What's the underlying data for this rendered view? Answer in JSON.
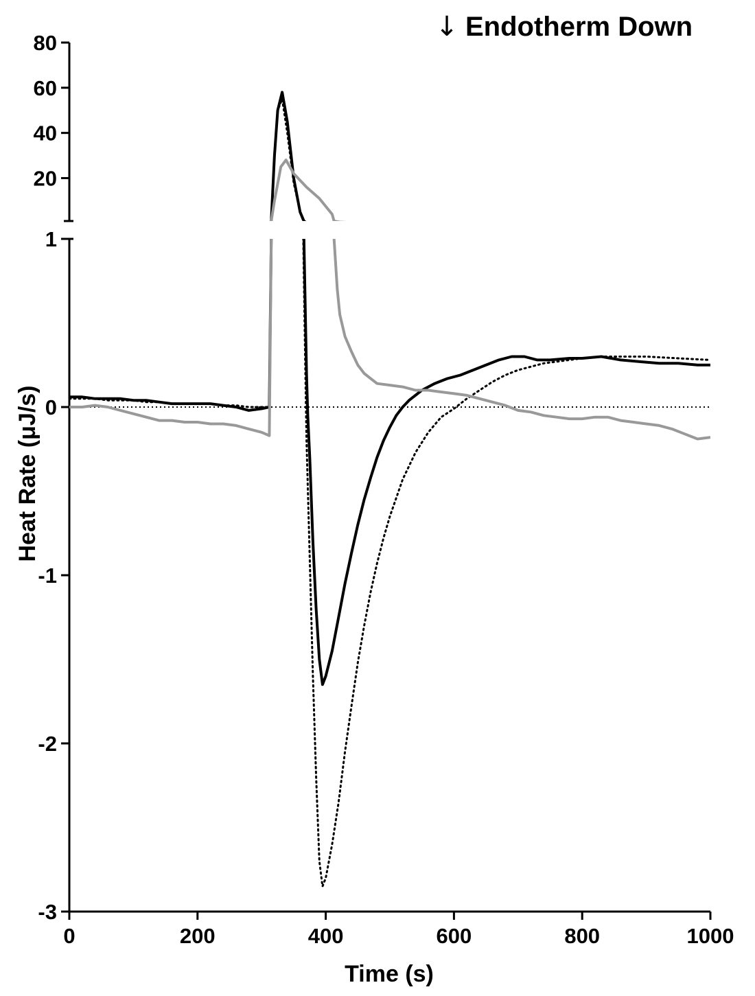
{
  "chart_data": {
    "type": "line",
    "annotation": "Endotherm Down",
    "annotation_icon": "down-arrow-icon",
    "xlabel": "Time (s)",
    "ylabel": "Heat Rate (μJ/s)",
    "xlim": [
      0,
      1000
    ],
    "x_ticks": [
      0,
      200,
      400,
      600,
      800,
      1000
    ],
    "x_tick_labels": [
      "0",
      "200",
      "400",
      "600",
      "800",
      "1000"
    ],
    "y_axis_break": true,
    "lower_segment": {
      "ylim": [
        -3,
        1
      ],
      "ticks": [
        -3,
        -2,
        -1,
        0,
        1
      ],
      "tick_labels": [
        "-3",
        "-2",
        "-1",
        "0",
        "1"
      ]
    },
    "upper_segment": {
      "ylim": [
        1,
        80
      ],
      "ticks": [
        20,
        40,
        60,
        80
      ],
      "tick_labels": [
        "20",
        "40",
        "60",
        "80"
      ]
    },
    "reference_line": {
      "y": 0,
      "style": "dotted",
      "color": "#000000"
    },
    "legend": "none",
    "grid": false,
    "series": [
      {
        "color": "#000000",
        "style": "solid",
        "points": [
          [
            0,
            0.06
          ],
          [
            20,
            0.06
          ],
          [
            40,
            0.05
          ],
          [
            60,
            0.05
          ],
          [
            80,
            0.05
          ],
          [
            100,
            0.04
          ],
          [
            120,
            0.04
          ],
          [
            140,
            0.03
          ],
          [
            160,
            0.02
          ],
          [
            180,
            0.02
          ],
          [
            200,
            0.02
          ],
          [
            220,
            0.02
          ],
          [
            240,
            0.01
          ],
          [
            260,
            0
          ],
          [
            280,
            -0.02
          ],
          [
            300,
            -0.01
          ],
          [
            312,
            0
          ],
          [
            315,
            1
          ],
          [
            320,
            30
          ],
          [
            325,
            50
          ],
          [
            332,
            58
          ],
          [
            340,
            45
          ],
          [
            350,
            20
          ],
          [
            360,
            5
          ],
          [
            366,
            1
          ],
          [
            368,
            0.6
          ],
          [
            370,
            0.2
          ],
          [
            372,
            -0.05
          ],
          [
            375,
            -0.3
          ],
          [
            380,
            -0.8
          ],
          [
            385,
            -1.2
          ],
          [
            390,
            -1.5
          ],
          [
            395,
            -1.65
          ],
          [
            400,
            -1.6
          ],
          [
            410,
            -1.45
          ],
          [
            420,
            -1.25
          ],
          [
            430,
            -1.05
          ],
          [
            440,
            -0.87
          ],
          [
            450,
            -0.7
          ],
          [
            460,
            -0.55
          ],
          [
            470,
            -0.42
          ],
          [
            480,
            -0.3
          ],
          [
            490,
            -0.2
          ],
          [
            500,
            -0.12
          ],
          [
            510,
            -0.05
          ],
          [
            520,
            0
          ],
          [
            530,
            0.04
          ],
          [
            550,
            0.1
          ],
          [
            570,
            0.14
          ],
          [
            590,
            0.17
          ],
          [
            610,
            0.19
          ],
          [
            630,
            0.22
          ],
          [
            650,
            0.25
          ],
          [
            670,
            0.28
          ],
          [
            690,
            0.3
          ],
          [
            710,
            0.3
          ],
          [
            730,
            0.28
          ],
          [
            750,
            0.28
          ],
          [
            780,
            0.29
          ],
          [
            800,
            0.29
          ],
          [
            830,
            0.3
          ],
          [
            860,
            0.28
          ],
          [
            890,
            0.27
          ],
          [
            920,
            0.26
          ],
          [
            950,
            0.26
          ],
          [
            980,
            0.25
          ],
          [
            1000,
            0.25
          ]
        ]
      },
      {
        "color": "#000000",
        "style": "dotted",
        "points": [
          [
            0,
            0.05
          ],
          [
            20,
            0.05
          ],
          [
            40,
            0.05
          ],
          [
            60,
            0.04
          ],
          [
            80,
            0.04
          ],
          [
            100,
            0.04
          ],
          [
            120,
            0.03
          ],
          [
            140,
            0.03
          ],
          [
            160,
            0.02
          ],
          [
            180,
            0.02
          ],
          [
            200,
            0.02
          ],
          [
            220,
            0.02
          ],
          [
            240,
            0.01
          ],
          [
            260,
            0.01
          ],
          [
            280,
            0
          ],
          [
            300,
            0
          ],
          [
            312,
            0
          ],
          [
            315,
            1
          ],
          [
            320,
            30
          ],
          [
            325,
            50
          ],
          [
            332,
            55
          ],
          [
            340,
            40
          ],
          [
            350,
            18
          ],
          [
            360,
            5
          ],
          [
            365,
            1
          ],
          [
            367,
            0.5
          ],
          [
            370,
            -0.2
          ],
          [
            375,
            -0.9
          ],
          [
            380,
            -1.6
          ],
          [
            385,
            -2.2
          ],
          [
            390,
            -2.7
          ],
          [
            395,
            -2.85
          ],
          [
            400,
            -2.8
          ],
          [
            410,
            -2.6
          ],
          [
            420,
            -2.35
          ],
          [
            430,
            -2.05
          ],
          [
            440,
            -1.78
          ],
          [
            450,
            -1.52
          ],
          [
            460,
            -1.3
          ],
          [
            470,
            -1.1
          ],
          [
            480,
            -0.93
          ],
          [
            490,
            -0.78
          ],
          [
            500,
            -0.65
          ],
          [
            520,
            -0.43
          ],
          [
            540,
            -0.27
          ],
          [
            560,
            -0.15
          ],
          [
            580,
            -0.06
          ],
          [
            600,
            -0.01
          ],
          [
            620,
            0.05
          ],
          [
            640,
            0.1
          ],
          [
            660,
            0.15
          ],
          [
            680,
            0.19
          ],
          [
            700,
            0.22
          ],
          [
            720,
            0.24
          ],
          [
            740,
            0.26
          ],
          [
            760,
            0.27
          ],
          [
            780,
            0.28
          ],
          [
            800,
            0.29
          ],
          [
            830,
            0.3
          ],
          [
            860,
            0.3
          ],
          [
            900,
            0.3
          ],
          [
            950,
            0.29
          ],
          [
            1000,
            0.28
          ]
        ]
      },
      {
        "color": "#999999",
        "style": "solid",
        "points": [
          [
            0,
            0
          ],
          [
            20,
            0
          ],
          [
            40,
            0.01
          ],
          [
            60,
            0
          ],
          [
            80,
            -0.02
          ],
          [
            100,
            -0.04
          ],
          [
            120,
            -0.06
          ],
          [
            140,
            -0.08
          ],
          [
            160,
            -0.08
          ],
          [
            180,
            -0.09
          ],
          [
            200,
            -0.09
          ],
          [
            220,
            -0.1
          ],
          [
            240,
            -0.1
          ],
          [
            260,
            -0.11
          ],
          [
            280,
            -0.13
          ],
          [
            300,
            -0.15
          ],
          [
            312,
            -0.17
          ],
          [
            315,
            1
          ],
          [
            320,
            10
          ],
          [
            330,
            25
          ],
          [
            338,
            28
          ],
          [
            350,
            22
          ],
          [
            370,
            16
          ],
          [
            390,
            11
          ],
          [
            410,
            4
          ],
          [
            413,
            1
          ],
          [
            418,
            0.7
          ],
          [
            422,
            0.55
          ],
          [
            430,
            0.42
          ],
          [
            440,
            0.33
          ],
          [
            450,
            0.25
          ],
          [
            460,
            0.2
          ],
          [
            470,
            0.17
          ],
          [
            480,
            0.14
          ],
          [
            500,
            0.13
          ],
          [
            520,
            0.12
          ],
          [
            540,
            0.1
          ],
          [
            560,
            0.1
          ],
          [
            580,
            0.09
          ],
          [
            600,
            0.08
          ],
          [
            620,
            0.07
          ],
          [
            640,
            0.05
          ],
          [
            660,
            0.03
          ],
          [
            680,
            0.01
          ],
          [
            700,
            -0.02
          ],
          [
            720,
            -0.03
          ],
          [
            740,
            -0.05
          ],
          [
            760,
            -0.06
          ],
          [
            780,
            -0.07
          ],
          [
            800,
            -0.07
          ],
          [
            820,
            -0.06
          ],
          [
            840,
            -0.06
          ],
          [
            860,
            -0.08
          ],
          [
            880,
            -0.09
          ],
          [
            900,
            -0.1
          ],
          [
            920,
            -0.11
          ],
          [
            940,
            -0.13
          ],
          [
            960,
            -0.16
          ],
          [
            980,
            -0.19
          ],
          [
            1000,
            -0.18
          ]
        ]
      }
    ]
  }
}
